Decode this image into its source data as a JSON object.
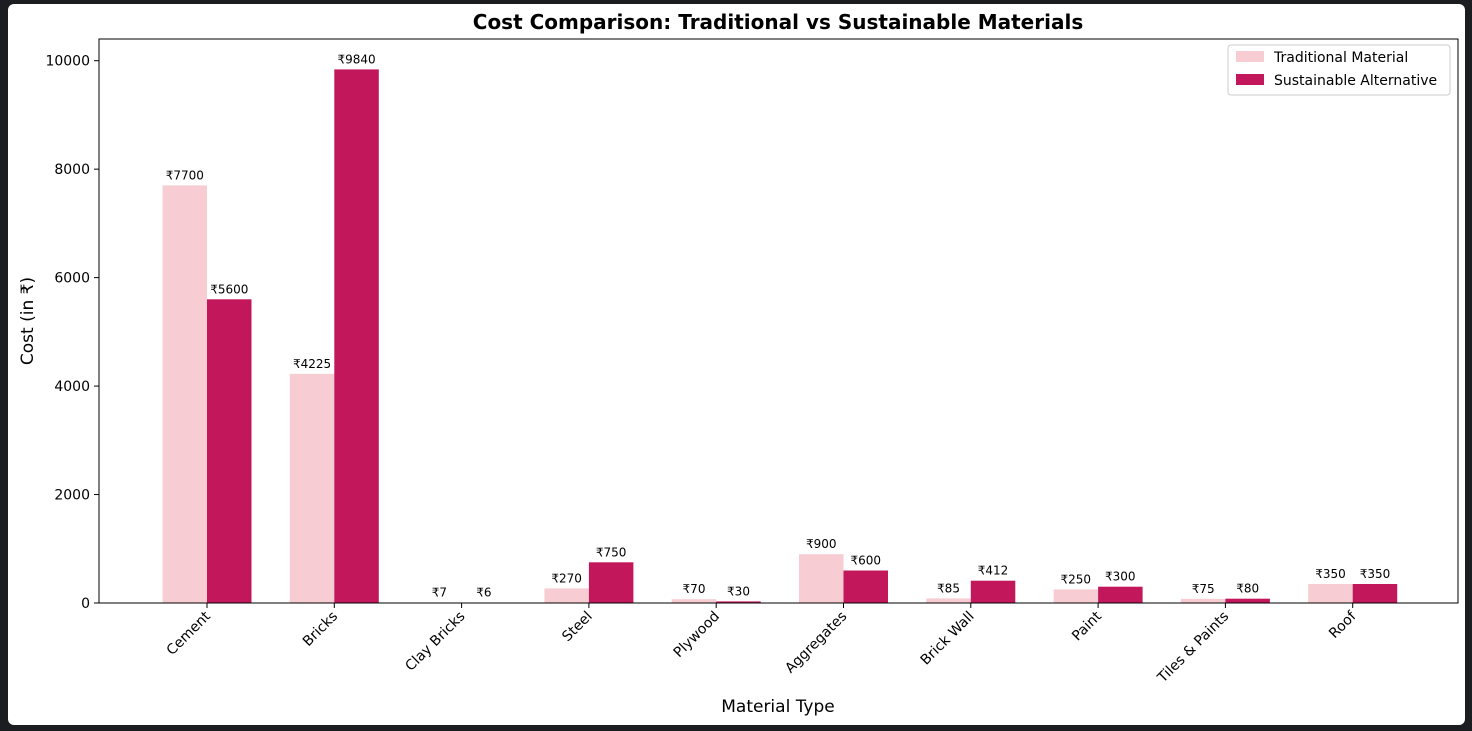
{
  "colors": {
    "background": "#1b1d21",
    "panel": "#ffffff",
    "traditional": "#f7cdd3",
    "sustainable": "#c2185b",
    "legend_border": "#cccccc"
  },
  "chart_data": {
    "type": "bar",
    "title": "Cost Comparison: Traditional vs Sustainable Materials",
    "xlabel": "Material Type",
    "ylabel": "Cost (in ₹)",
    "ylim": [
      0,
      10400
    ],
    "yticks": [
      0,
      2000,
      4000,
      6000,
      8000,
      10000
    ],
    "grid": false,
    "legend_position": "top-right",
    "currency_prefix": "₹",
    "categories": [
      "Cement",
      "Bricks",
      "Clay Bricks",
      "Steel",
      "Plywood",
      "Aggregates",
      "Brick Wall",
      "Paint",
      "Tiles & Paints",
      "Roof"
    ],
    "series": [
      {
        "name": "Traditional Material",
        "values": [
          7700,
          4225,
          7,
          270,
          70,
          900,
          85,
          250,
          75,
          350
        ]
      },
      {
        "name": "Sustainable Alternative",
        "values": [
          5600,
          9840,
          6,
          750,
          30,
          600,
          412,
          300,
          80,
          350
        ]
      }
    ]
  }
}
